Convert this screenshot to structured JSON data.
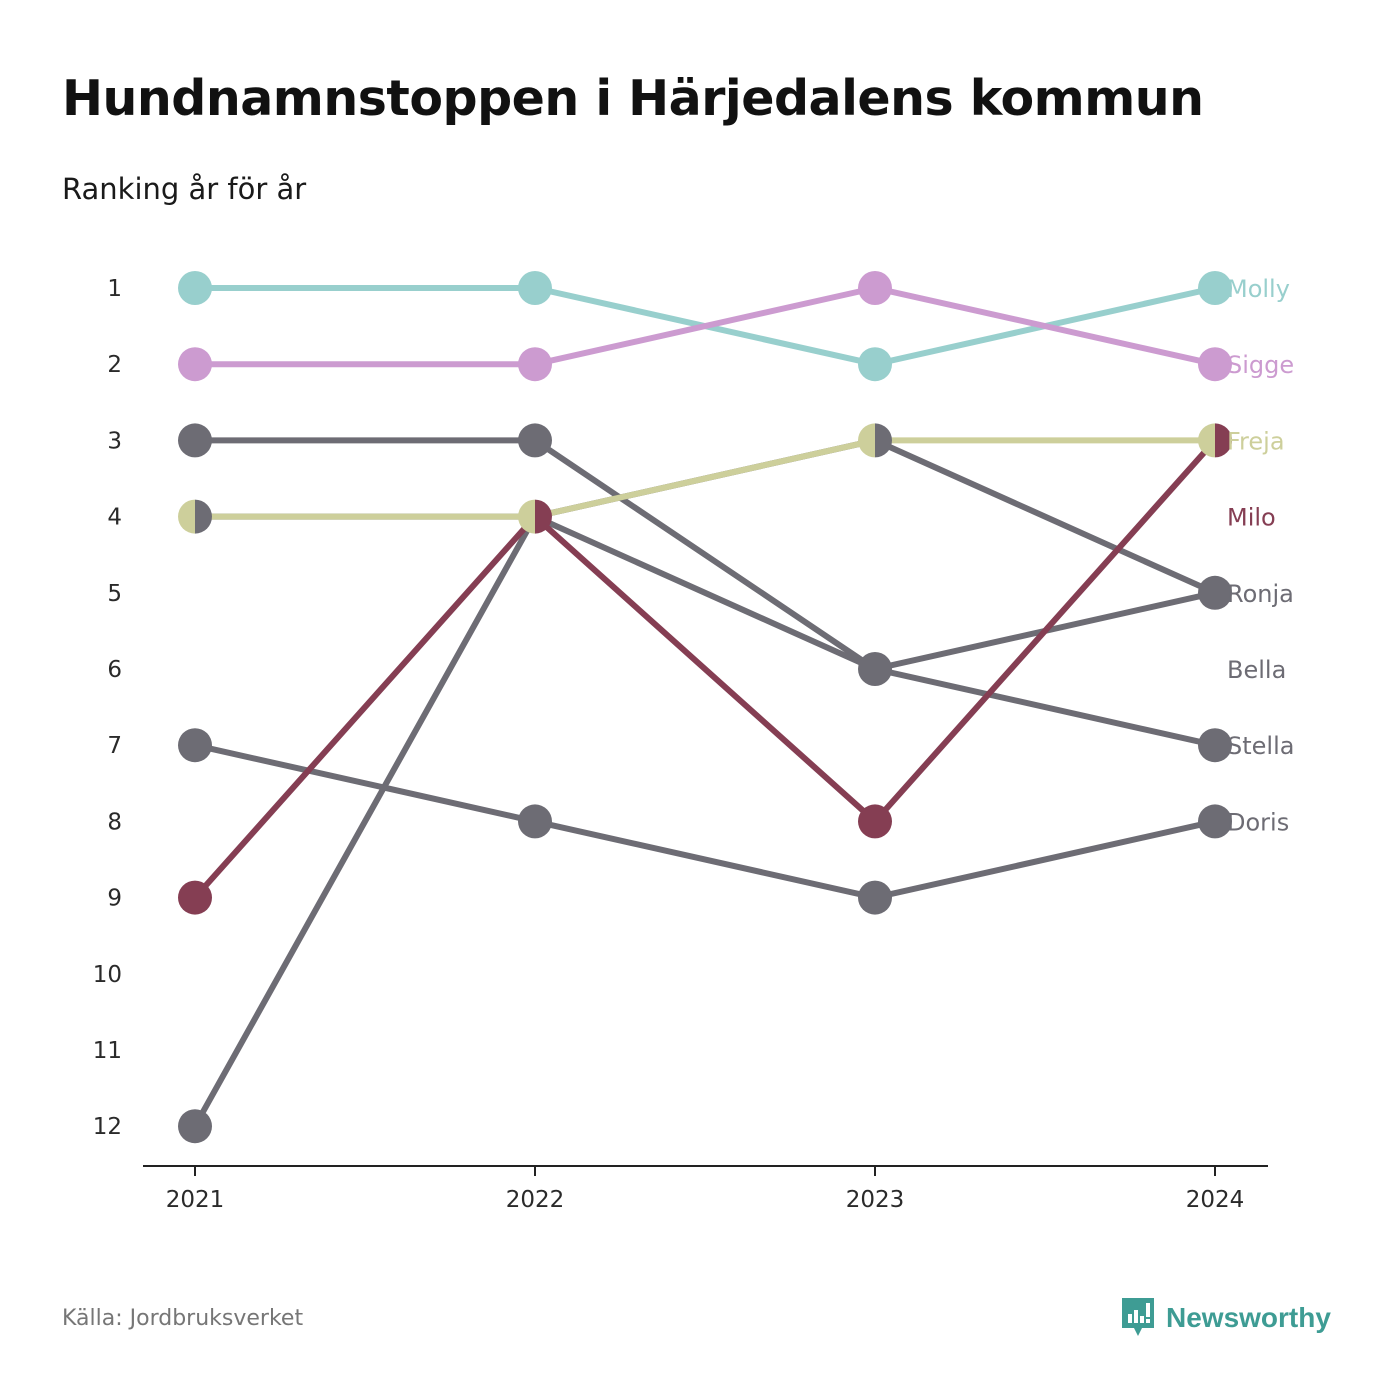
{
  "title": "Hundnamnstoppen i Härjedalens kommun",
  "subtitle": "Ranking år för år",
  "source": "Källa: Jordbruksverket",
  "brand": {
    "name": "Newsworthy",
    "icon": "newsworthy-logo-icon",
    "color": "#3e9c94"
  },
  "chart_data": {
    "type": "line",
    "chart_subtype": "bump",
    "title": "Hundnamnstoppen i Härjedalens kommun",
    "subtitle": "Ranking år för år",
    "x": [
      "2021",
      "2022",
      "2023",
      "2024"
    ],
    "y_ticks": [
      "1",
      "2",
      "3",
      "4",
      "5",
      "6",
      "7",
      "8",
      "9",
      "10",
      "11",
      "12"
    ],
    "ylim": [
      1,
      12
    ],
    "y_reversed": true,
    "grid": false,
    "legend": "labels at line ends",
    "series": [
      {
        "name": "Molly",
        "color": "#98cfcd",
        "values": [
          1,
          1,
          2,
          1
        ]
      },
      {
        "name": "Sigge",
        "color": "#cc9bd0",
        "values": [
          2,
          2,
          1,
          2
        ]
      },
      {
        "name": "Freja",
        "color": "#cdcf9b",
        "values": [
          4,
          4,
          3,
          3
        ]
      },
      {
        "name": "Milo",
        "color": "#853e53",
        "values": [
          9,
          4,
          8,
          3
        ]
      },
      {
        "name": "Ronja",
        "color": "#6d6c74",
        "values": [
          3,
          3,
          6,
          5
        ]
      },
      {
        "name": "Bella",
        "color": "#6d6c74",
        "values": [
          12,
          4,
          3,
          5
        ]
      },
      {
        "name": "Stella",
        "color": "#6d6c74",
        "values": [
          4,
          4,
          6,
          7
        ]
      },
      {
        "name": "Doris",
        "color": "#6d6c74",
        "values": [
          7,
          8,
          9,
          8
        ]
      }
    ]
  }
}
